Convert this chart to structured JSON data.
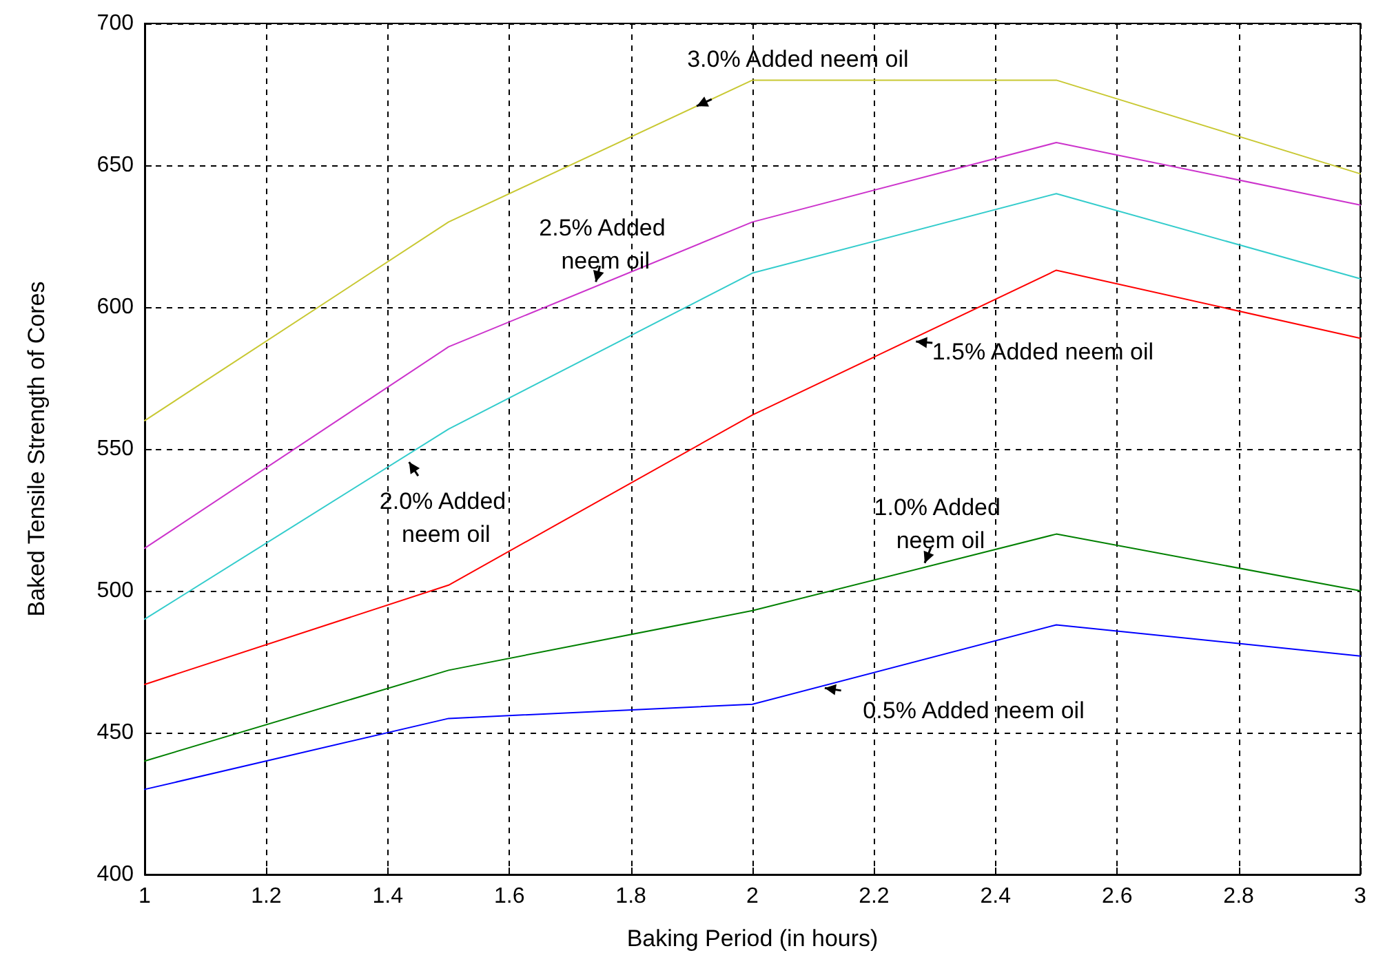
{
  "chart_data": {
    "type": "line",
    "xlabel": "Baking Period (in hours)",
    "ylabel": "Baked Tensile Strength of Cores",
    "x": [
      1,
      1.5,
      2,
      2.5,
      3
    ],
    "series": [
      {
        "color": "#c8c832",
        "values": [
          560,
          630,
          680,
          680,
          647
        ]
      },
      {
        "color": "#cc33cc",
        "values": [
          515,
          586,
          630,
          658,
          636
        ]
      },
      {
        "color": "#33cccc",
        "values": [
          490,
          557,
          612,
          640,
          610
        ]
      },
      {
        "color": "#ff0000",
        "values": [
          467,
          502,
          562,
          613,
          589
        ]
      },
      {
        "color": "#008000",
        "values": [
          440,
          472,
          493,
          520,
          500
        ]
      },
      {
        "color": "#0000ff",
        "values": [
          430,
          455,
          460,
          488,
          477
        ]
      }
    ],
    "annotations": [
      {
        "text": "3.0% Added neem oil",
        "x": 1.9,
        "y": 670
      },
      {
        "text": "2.5% Added neem oil",
        "x": 1.74,
        "y": 607
      },
      {
        "text": "2.0% Added neem oil",
        "x": 1.43,
        "y": 547
      },
      {
        "text": "1.5% Added neem oil",
        "x": 2.26,
        "y": 588
      },
      {
        "text": "1.0% Added neem oil",
        "x": 2.28,
        "y": 508
      },
      {
        "text": "0.5% Added neem oil",
        "x": 2.11,
        "y": 466
      }
    ],
    "xlim": [
      1,
      3
    ],
    "xticks": [
      1,
      1.2,
      1.4,
      1.6,
      1.8,
      2,
      2.2,
      2.4,
      2.6,
      2.8,
      3
    ],
    "ylim": [
      400,
      700
    ],
    "yticks": [
      400,
      450,
      500,
      550,
      600,
      650,
      700
    ],
    "grid": true,
    "marker": "none",
    "line_style": "solid"
  }
}
